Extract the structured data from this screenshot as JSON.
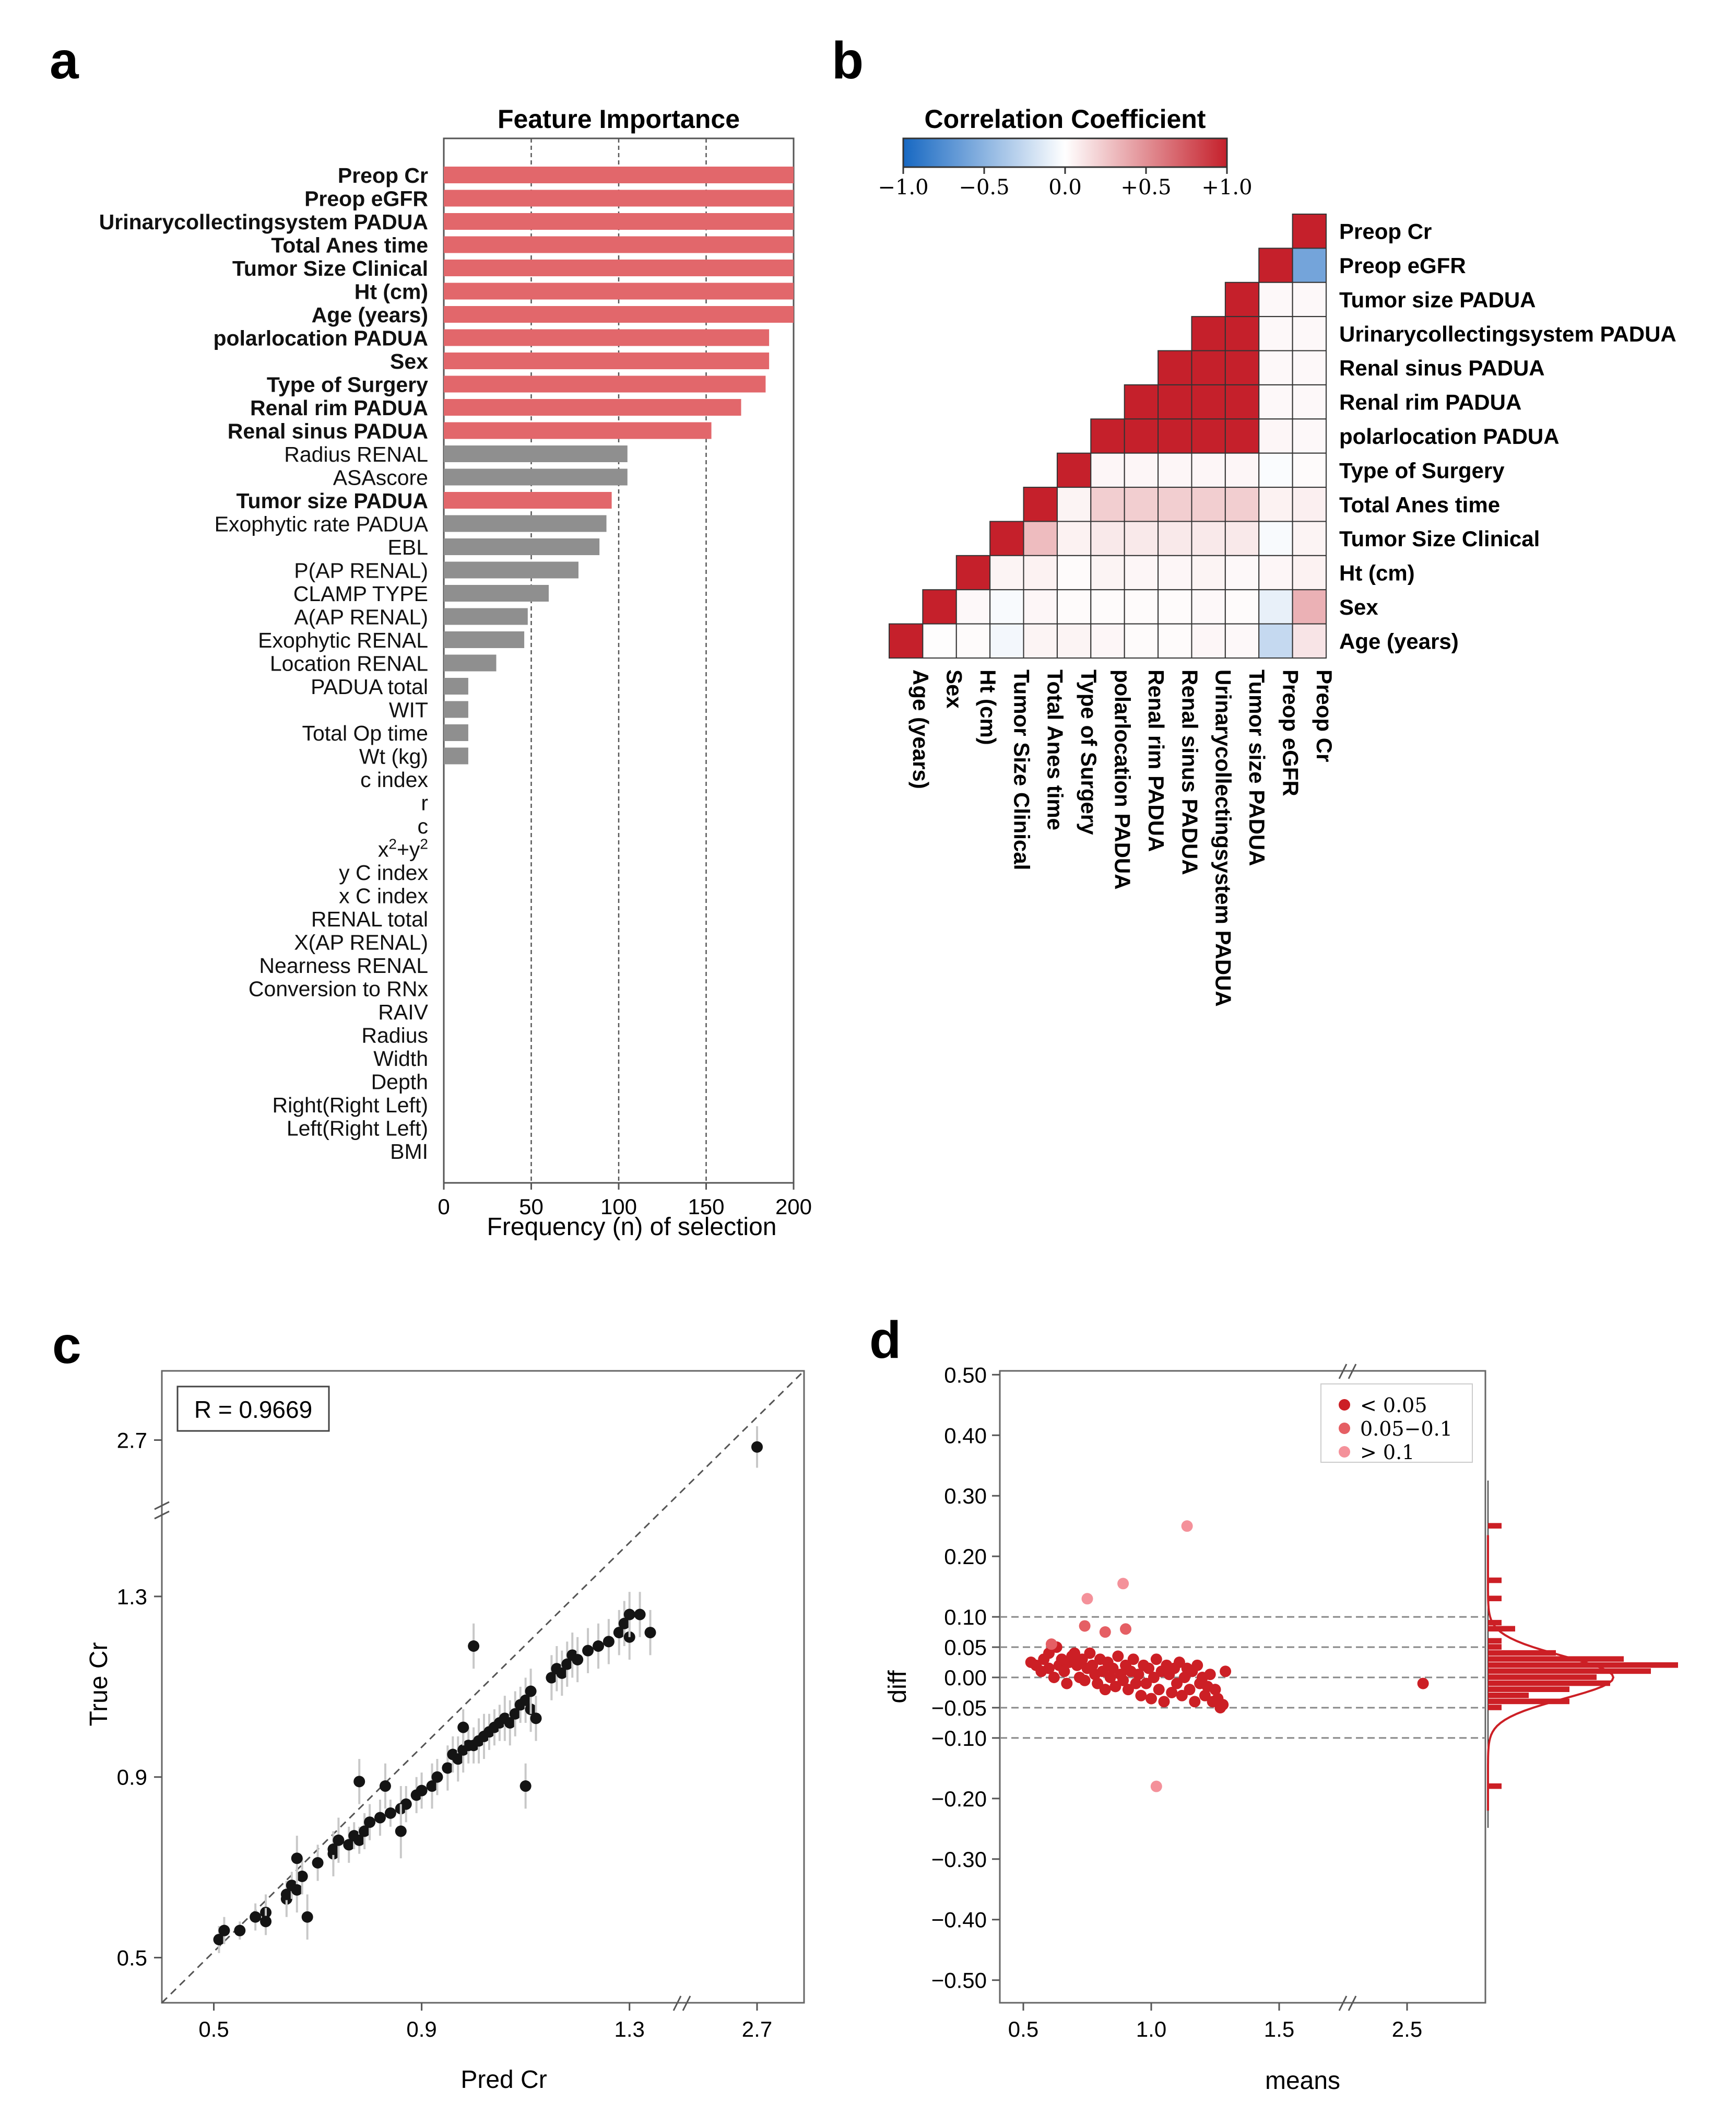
{
  "colors": {
    "red": "#e2676b",
    "gray": "#8f8f8f",
    "dark_red": "#cc1f25",
    "mid_red": "#e55f64",
    "light_red": "#f4919a",
    "point": "#141414",
    "blue": "#1768c2"
  },
  "panels": {
    "a": "a",
    "b": "b",
    "c": "c",
    "d": "d"
  },
  "chart_data": [
    {
      "panel": "a",
      "type": "bar",
      "orientation": "horizontal",
      "title": "Feature Importance",
      "xlabel": "Frequency (n) of selection",
      "xlim": [
        0,
        200
      ],
      "xticks": [
        0,
        50,
        100,
        150,
        200
      ],
      "gridlines_x": [
        50,
        100,
        150
      ],
      "categories": [
        "Preop Cr",
        "Preop eGFR",
        "Urinarycollectingsystem PADUA",
        "Total Anes time",
        "Tumor Size Clinical",
        "Ht (cm)",
        "Age (years)",
        "polarlocation PADUA",
        "Sex",
        "Type of Surgery",
        "Renal rim PADUA",
        "Renal sinus PADUA",
        "Radius RENAL",
        "ASAscore",
        "Tumor size PADUA",
        "Exophytic rate PADUA",
        "EBL",
        "P(AP RENAL)",
        "CLAMP TYPE",
        "A(AP RENAL)",
        "Exophytic RENAL",
        "Location RENAL",
        "PADUA total",
        "WIT",
        "Total Op time",
        "Wt (kg)",
        "c index",
        "r",
        "c",
        "x²+y²",
        "y C index",
        "x C index",
        "RENAL total",
        "X(AP RENAL)",
        "Nearness RENAL",
        "Conversion to RNx",
        "RAIV",
        "Radius",
        "Width",
        "Depth",
        "Right(Right Left)",
        "Left(Right Left)",
        "BMI"
      ],
      "values": [
        200,
        200,
        200,
        200,
        200,
        200,
        200,
        186,
        186,
        184,
        170,
        153,
        105,
        105,
        96,
        93,
        89,
        77,
        60,
        48,
        46,
        30,
        14,
        14,
        14,
        14,
        0,
        0,
        0,
        0,
        0,
        0,
        0,
        0,
        0,
        0,
        0,
        0,
        0,
        0,
        0,
        0,
        0
      ],
      "selected": [
        true,
        true,
        true,
        true,
        true,
        true,
        true,
        true,
        true,
        true,
        true,
        true,
        false,
        false,
        true,
        false,
        false,
        false,
        false,
        false,
        false,
        false,
        false,
        false,
        false,
        false,
        false,
        false,
        false,
        false,
        false,
        false,
        false,
        false,
        false,
        false,
        false,
        false,
        false,
        false,
        false,
        false,
        false
      ]
    },
    {
      "panel": "b",
      "type": "heatmap",
      "shape": "lower-triangle",
      "title": "Correlation Coefficient",
      "colorbar_ticks": [
        "−1.0",
        "−0.5",
        "0.0",
        "+0.5",
        "+1.0"
      ],
      "colorbar_range": [
        -1,
        1
      ],
      "variables": [
        "Age (years)",
        "Sex",
        "Ht (cm)",
        "Tumor Size Clinical",
        "Total Anes time",
        "Type of Surgery",
        "polarlocation PADUA",
        "Renal rim PADUA",
        "Renal sinus PADUA",
        "Urinarycollectingsystem PADUA",
        "Tumor size PADUA",
        "Preop eGFR",
        "Preop Cr"
      ],
      "row_labels": [
        "Preop Cr",
        "Preop eGFR",
        "Tumor size PADUA",
        "Urinarycollectingsystem PADUA",
        "Renal sinus PADUA",
        "Renal rim PADUA",
        "polarlocation PADUA",
        "Type of Surgery",
        "Total Anes time",
        "Tumor Size Clinical",
        "Ht (cm)",
        "Sex",
        "Age (years)"
      ],
      "matrix": [
        [
          1,
          0.01,
          0.02,
          -0.05,
          0.05,
          0.05,
          0.04,
          0.02,
          0.02,
          0.04,
          0.03,
          -0.25,
          0.12
        ],
        [
          0.01,
          1,
          0.03,
          -0.03,
          0.04,
          0.02,
          0.02,
          0.02,
          0.02,
          0.03,
          0.02,
          -0.1,
          0.35
        ],
        [
          0.02,
          0.03,
          1,
          0.05,
          0.06,
          0.02,
          0.05,
          0.04,
          0.04,
          0.05,
          0.03,
          0.04,
          0.06
        ],
        [
          -0.05,
          -0.03,
          0.05,
          1,
          0.3,
          0.06,
          0.1,
          0.1,
          0.1,
          0.1,
          0.1,
          -0.03,
          0.05
        ],
        [
          0.05,
          0.04,
          0.06,
          0.3,
          1,
          0.05,
          0.22,
          0.22,
          0.22,
          0.22,
          0.22,
          0.06,
          0.07
        ],
        [
          0.05,
          0.02,
          0.02,
          0.06,
          0.05,
          1,
          0.04,
          0.04,
          0.04,
          0.04,
          0.04,
          -0.02,
          0.02
        ],
        [
          0.04,
          0.02,
          0.05,
          0.1,
          0.22,
          0.04,
          1,
          1,
          1,
          1,
          1,
          0.04,
          0.03
        ],
        [
          0.02,
          0.02,
          0.04,
          0.1,
          0.22,
          0.04,
          1,
          1,
          1,
          1,
          1,
          0.03,
          0.03
        ],
        [
          0.02,
          0.02,
          0.04,
          0.1,
          0.22,
          0.04,
          1,
          1,
          1,
          1,
          1,
          0.03,
          0.03
        ],
        [
          0.04,
          0.03,
          0.05,
          0.1,
          0.22,
          0.04,
          1,
          1,
          1,
          1,
          1,
          0.03,
          0.03
        ],
        [
          0.03,
          0.02,
          0.03,
          0.1,
          0.22,
          0.04,
          1,
          1,
          1,
          1,
          1,
          0.03,
          0.03
        ],
        [
          -0.25,
          -0.1,
          0.04,
          -0.03,
          0.06,
          -0.02,
          0.04,
          0.03,
          0.03,
          0.03,
          0.03,
          1,
          -0.6
        ],
        [
          0.12,
          0.35,
          0.06,
          0.05,
          0.07,
          0.02,
          0.03,
          0.03,
          0.03,
          0.03,
          0.03,
          -0.6,
          1
        ]
      ]
    },
    {
      "panel": "c",
      "type": "scatter",
      "xlabel": "Pred Cr",
      "ylabel": "True Cr",
      "xticks": [
        "0.5",
        "0.9",
        "1.3",
        "2.7"
      ],
      "yticks": [
        "0.5",
        "0.9",
        "1.3",
        "2.7"
      ],
      "axis_break": "between 1.3 and 2.7",
      "annotation": "R = 0.9669",
      "reference_line": "y = x",
      "points": [
        [
          0.51,
          0.54,
          0.03
        ],
        [
          0.52,
          0.56,
          0.03
        ],
        [
          0.55,
          0.56,
          0.02
        ],
        [
          0.58,
          0.59,
          0.03
        ],
        [
          0.6,
          0.6,
          0.04
        ],
        [
          0.6,
          0.58,
          0.03
        ],
        [
          0.64,
          0.63,
          0.04
        ],
        [
          0.64,
          0.64,
          0.03
        ],
        [
          0.65,
          0.66,
          0.03
        ],
        [
          0.66,
          0.65,
          0.05
        ],
        [
          0.67,
          0.68,
          0.04
        ],
        [
          0.68,
          0.59,
          0.05
        ],
        [
          0.66,
          0.72,
          0.05
        ],
        [
          0.7,
          0.71,
          0.04
        ],
        [
          0.73,
          0.73,
          0.05
        ],
        [
          0.73,
          0.74,
          0.04
        ],
        [
          0.74,
          0.76,
          0.05
        ],
        [
          0.76,
          0.75,
          0.04
        ],
        [
          0.77,
          0.77,
          0.03
        ],
        [
          0.78,
          0.76,
          0.03
        ],
        [
          0.79,
          0.78,
          0.04
        ],
        [
          0.8,
          0.8,
          0.04
        ],
        [
          0.82,
          0.81,
          0.04
        ],
        [
          0.84,
          0.82,
          0.03
        ],
        [
          0.86,
          0.83,
          0.05
        ],
        [
          0.87,
          0.84,
          0.04
        ],
        [
          0.86,
          0.78,
          0.06
        ],
        [
          0.83,
          0.88,
          0.05
        ],
        [
          0.78,
          0.89,
          0.05
        ],
        [
          0.89,
          0.86,
          0.04
        ],
        [
          0.9,
          0.87,
          0.04
        ],
        [
          0.92,
          0.88,
          0.05
        ],
        [
          0.93,
          0.9,
          0.04
        ],
        [
          0.95,
          0.92,
          0.05
        ],
        [
          0.96,
          0.95,
          0.04
        ],
        [
          0.97,
          0.94,
          0.05
        ],
        [
          0.98,
          0.96,
          0.05
        ],
        [
          0.99,
          0.97,
          0.04
        ],
        [
          1.0,
          0.97,
          0.04
        ],
        [
          0.98,
          1.01,
          0.04
        ],
        [
          1.01,
          0.98,
          0.05
        ],
        [
          1.02,
          0.99,
          0.05
        ],
        [
          1.03,
          1.0,
          0.04
        ],
        [
          1.04,
          1.01,
          0.04
        ],
        [
          1.05,
          1.02,
          0.04
        ],
        [
          1.06,
          1.03,
          0.05
        ],
        [
          1.07,
          1.02,
          0.05
        ],
        [
          1.08,
          1.04,
          0.05
        ],
        [
          1.09,
          1.06,
          0.04
        ],
        [
          1.1,
          1.07,
          0.05
        ],
        [
          1.11,
          1.05,
          0.05
        ],
        [
          1.11,
          1.09,
          0.05
        ],
        [
          1.12,
          1.03,
          0.05
        ],
        [
          1.1,
          0.88,
          0.05
        ],
        [
          1.0,
          1.19,
          0.05
        ],
        [
          1.15,
          1.12,
          0.05
        ],
        [
          1.16,
          1.14,
          0.05
        ],
        [
          1.17,
          1.13,
          0.05
        ],
        [
          1.18,
          1.15,
          0.05
        ],
        [
          1.19,
          1.17,
          0.05
        ],
        [
          1.2,
          1.16,
          0.05
        ],
        [
          1.22,
          1.18,
          0.05
        ],
        [
          1.24,
          1.19,
          0.05
        ],
        [
          1.26,
          1.2,
          0.05
        ],
        [
          1.28,
          1.22,
          0.05
        ],
        [
          1.29,
          1.24,
          0.05
        ],
        [
          1.3,
          1.21,
          0.05
        ],
        [
          1.3,
          1.26,
          0.05
        ],
        [
          1.32,
          1.26,
          0.05
        ],
        [
          1.34,
          1.22,
          0.05
        ],
        [
          2.7,
          2.69,
          0.03
        ]
      ]
    },
    {
      "panel": "d",
      "type": "scatter",
      "xlabel": "means",
      "ylabel": "diff",
      "xticks": [
        "0.5",
        "1.0",
        "1.5",
        "2.5"
      ],
      "yticks": [
        "0.50",
        "0.40",
        "0.30",
        "0.20",
        "0.10",
        "0.05",
        "0.00",
        "−0.05",
        "−0.10",
        "−0.20",
        "−0.30",
        "−0.40",
        "−0.50"
      ],
      "ylim": [
        -0.5,
        0.5
      ],
      "reference_lines": [
        0.1,
        0.05,
        0,
        -0.05,
        -0.1
      ],
      "legend": [
        "< 0.05",
        "0.05−0.1",
        "> 0.1"
      ],
      "legend_position": "top-right",
      "marginal": "histogram with density curve",
      "points": [
        [
          0.53,
          0.025
        ],
        [
          0.55,
          0.02
        ],
        [
          0.57,
          0.01
        ],
        [
          0.58,
          0.03
        ],
        [
          0.6,
          0.04
        ],
        [
          0.6,
          0.015
        ],
        [
          0.62,
          0.0
        ],
        [
          0.63,
          0.05
        ],
        [
          0.64,
          0.02
        ],
        [
          0.65,
          0.03
        ],
        [
          0.66,
          0.01
        ],
        [
          0.67,
          -0.01
        ],
        [
          0.68,
          0.025
        ],
        [
          0.69,
          0.035
        ],
        [
          0.7,
          0.04
        ],
        [
          0.71,
          0.02
        ],
        [
          0.72,
          0.0
        ],
        [
          0.73,
          0.03
        ],
        [
          0.74,
          -0.005
        ],
        [
          0.75,
          0.015
        ],
        [
          0.76,
          0.04
        ],
        [
          0.77,
          0.02
        ],
        [
          0.78,
          0.005
        ],
        [
          0.79,
          -0.01
        ],
        [
          0.8,
          0.03
        ],
        [
          0.81,
          0.01
        ],
        [
          0.82,
          -0.02
        ],
        [
          0.83,
          0.025
        ],
        [
          0.84,
          0.0
        ],
        [
          0.85,
          0.015
        ],
        [
          0.86,
          -0.015
        ],
        [
          0.87,
          0.035
        ],
        [
          0.88,
          0.005
        ],
        [
          0.89,
          -0.005
        ],
        [
          0.9,
          0.02
        ],
        [
          0.91,
          -0.02
        ],
        [
          0.92,
          0.01
        ],
        [
          0.93,
          0.03
        ],
        [
          0.94,
          -0.01
        ],
        [
          0.95,
          0.005
        ],
        [
          0.96,
          -0.03
        ],
        [
          0.97,
          0.02
        ],
        [
          0.98,
          -0.01
        ],
        [
          0.99,
          0.015
        ],
        [
          1.0,
          -0.035
        ],
        [
          1.01,
          0.0
        ],
        [
          1.02,
          0.03
        ],
        [
          1.03,
          -0.02
        ],
        [
          1.04,
          0.01
        ],
        [
          1.05,
          -0.04
        ],
        [
          1.06,
          0.02
        ],
        [
          1.07,
          0.005
        ],
        [
          1.08,
          -0.025
        ],
        [
          1.09,
          0.015
        ],
        [
          1.1,
          -0.01
        ],
        [
          1.11,
          0.025
        ],
        [
          1.12,
          -0.03
        ],
        [
          1.13,
          0.0
        ],
        [
          1.14,
          0.015
        ],
        [
          1.15,
          -0.02
        ],
        [
          1.16,
          0.01
        ],
        [
          1.17,
          -0.04
        ],
        [
          1.18,
          0.02
        ],
        [
          1.19,
          -0.01
        ],
        [
          1.2,
          0.0
        ],
        [
          1.21,
          -0.03
        ],
        [
          1.22,
          -0.015
        ],
        [
          1.23,
          0.005
        ],
        [
          1.24,
          -0.04
        ],
        [
          1.25,
          -0.02
        ],
        [
          1.26,
          -0.035
        ],
        [
          1.27,
          -0.05
        ],
        [
          1.28,
          -0.045
        ],
        [
          1.29,
          0.01
        ],
        [
          0.61,
          0.055
        ],
        [
          0.74,
          0.085
        ],
        [
          0.82,
          0.075
        ],
        [
          0.9,
          0.08
        ],
        [
          0.75,
          0.13
        ],
        [
          0.89,
          0.155
        ],
        [
          1.14,
          0.25
        ],
        [
          1.02,
          -0.18
        ],
        [
          2.75,
          -0.01
        ]
      ]
    }
  ]
}
